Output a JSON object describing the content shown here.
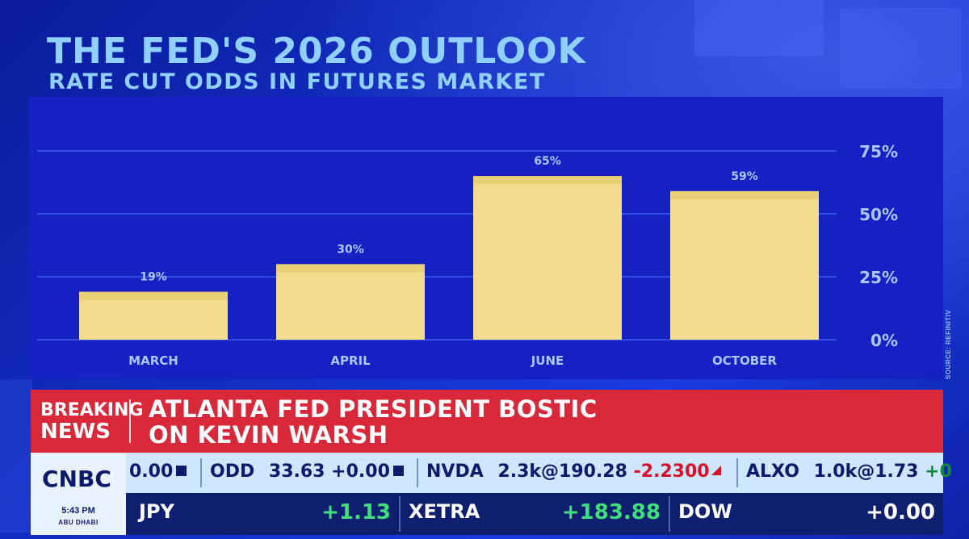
{
  "header": {
    "title": "THE FED'S 2026 OUTLOOK",
    "subtitle": "RATE CUT ODDS IN FUTURES MARKET"
  },
  "source_label": "SOURCE: REFINITIV",
  "chart_data": {
    "type": "bar",
    "title": "THE FED'S 2026 OUTLOOK",
    "subtitle": "RATE CUT ODDS IN FUTURES MARKET",
    "categories": [
      "MARCH",
      "APRIL",
      "JUNE",
      "OCTOBER"
    ],
    "values": [
      19,
      30,
      65,
      59
    ],
    "value_labels": [
      "19%",
      "30%",
      "65%",
      "59%"
    ],
    "ylim": [
      0,
      75
    ],
    "yticks": [
      0,
      25,
      50,
      75
    ],
    "ytick_labels": [
      "0%",
      "25%",
      "50%",
      "75%"
    ],
    "y_axis_side": "right",
    "grid": true,
    "bar_color": "#f3dc8e",
    "xlabel": "",
    "ylabel": ""
  },
  "breaking": {
    "tag_line1": "BREAKING",
    "tag_line2": "NEWS",
    "headline_line1": "ATLANTA FED PRESIDENT BOSTIC",
    "headline_line2": "ON KEVIN WARSH"
  },
  "logo": {
    "name": "CNBC",
    "time": "5:43 PM",
    "city": "ABU DHABI"
  },
  "ticker_top": {
    "partial_value": "0.00",
    "odd_symbol": "ODD",
    "odd_price": "33.63",
    "odd_change": "+0.00",
    "nvda_symbol": "NVDA",
    "nvda_trade": "2.3k@190.28",
    "nvda_change": "-2.2300",
    "alxo_symbol": "ALXO",
    "alxo_trade": "1.0k@1.73",
    "alxo_change_partial": "+0"
  },
  "ticker_bottom": {
    "jpy_label": "JPY",
    "jpy_value": "+1.13",
    "xetra_label": "XETRA",
    "xetra_value": "+183.88",
    "dow_label": "DOW",
    "dow_value": "+0.00"
  },
  "colors": {
    "title": "#8fd0ff",
    "panel": "#1621c4",
    "bar": "#f3dc8e",
    "breaking_bg": "#d9283a",
    "ticker_light": "#cfe6ff",
    "ticker_dark": "#0d1f6e",
    "positive": "#3ee07a",
    "negative": "#d8102a"
  }
}
